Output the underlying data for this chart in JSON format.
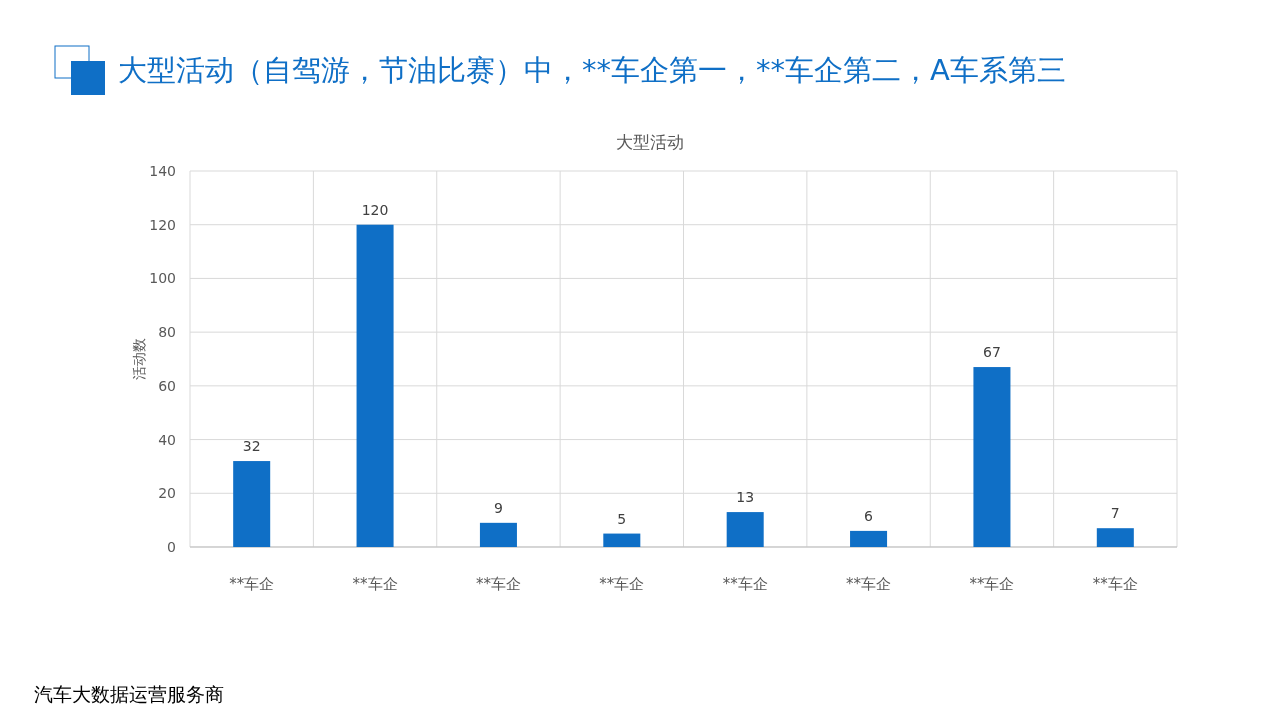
{
  "chart_data": {
    "type": "bar",
    "title": "大型活动（自驾游，节油比赛）中，**车企第一，**车企第二，A车系第三",
    "subtitle": "大型活动",
    "ylabel": "活动数",
    "categories": [
      "**车企",
      "**车企",
      "**车企",
      "**车企",
      "**车企",
      "**车企",
      "**车企",
      "**车企"
    ],
    "values": [
      32,
      120,
      9,
      5,
      13,
      6,
      67,
      7
    ],
    "color": "#0f6fc6",
    "ylim": [
      0,
      140
    ],
    "yticks": [
      0,
      20,
      40,
      60,
      80,
      100,
      120,
      140
    ],
    "grid": true,
    "data_labels": true,
    "annotations": [
      "汽车大数据运营服务商"
    ]
  }
}
